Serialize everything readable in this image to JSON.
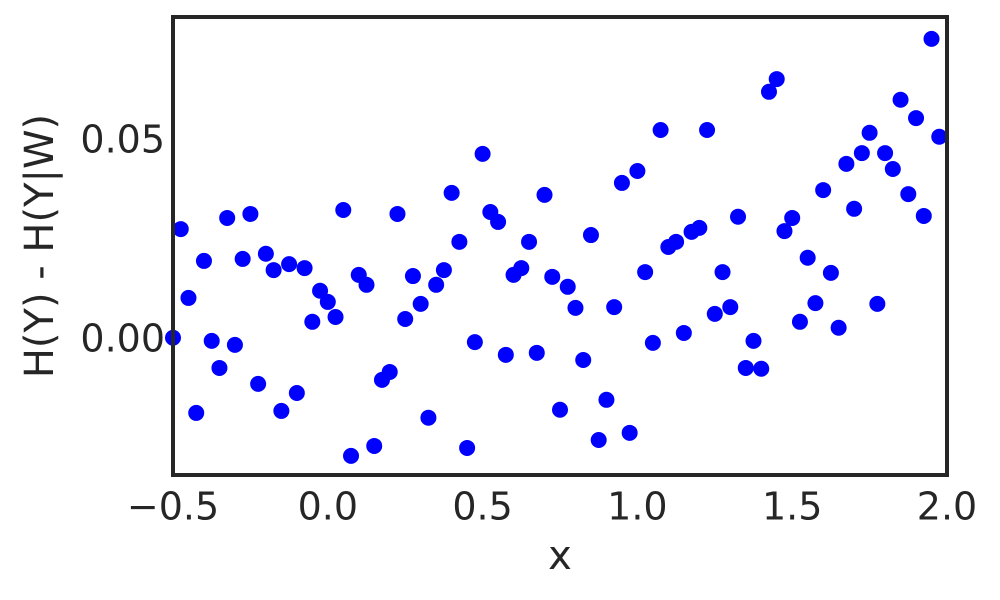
{
  "chart_data": {
    "type": "scatter",
    "xlabel": "x",
    "ylabel": "H(Y) - H(Y|W)",
    "color": "#0000ff",
    "grid": false,
    "xlim": [
      -0.5,
      2.0
    ],
    "ylim": [
      -0.0337,
      0.0814
    ],
    "xticks": [
      {
        "value": -0.5,
        "label": "−0.5"
      },
      {
        "value": 0,
        "label": "0.0"
      },
      0.5,
      {
        "value": 1,
        "label": "1.0"
      },
      1.5,
      {
        "value": 2,
        "label": "2.0"
      }
    ],
    "yticks": [
      {
        "value": 0,
        "label": "0.00"
      },
      0.05
    ],
    "x": [
      -0.5,
      -0.475,
      -0.45,
      -0.425,
      -0.4,
      -0.375,
      -0.35,
      -0.325,
      -0.3,
      -0.275,
      -0.25,
      -0.225,
      -0.2,
      -0.175,
      -0.15,
      -0.125,
      -0.1,
      -0.075,
      -0.05,
      -0.025,
      0,
      0.025,
      0.05,
      0.075,
      0.1,
      0.125,
      0.15,
      0.175,
      0.2,
      0.225,
      0.25,
      0.275,
      0.3,
      0.325,
      0.35,
      0.375,
      0.4,
      0.425,
      0.45,
      0.475,
      0.5,
      0.525,
      0.55,
      0.575,
      0.6,
      0.625,
      0.65,
      0.675,
      0.7,
      0.725,
      0.75,
      0.775,
      0.8,
      0.825,
      0.85,
      0.875,
      0.9,
      0.925,
      0.95,
      0.975,
      1,
      1.025,
      1.05,
      1.075,
      1.1,
      1.125,
      1.15,
      1.175,
      1.2,
      1.225,
      1.25,
      1.275,
      1.3,
      1.325,
      1.35,
      1.375,
      1.4,
      1.425,
      1.45,
      1.475,
      1.5,
      1.525,
      1.55,
      1.575,
      1.6,
      1.625,
      1.65,
      1.675,
      1.7,
      1.725,
      1.75,
      1.775,
      1.8,
      1.825,
      1.85,
      1.875,
      1.9,
      1.925,
      1.95,
      1.975
    ],
    "values": [
      0.0008,
      0.0281,
      0.0108,
      -0.0181,
      0.0201,
      0,
      -0.0068,
      0.0309,
      -0.001,
      0.0206,
      0.0319,
      -0.0108,
      0.0219,
      0.0178,
      -0.0176,
      0.0193,
      -0.0131,
      0.0183,
      0.0048,
      0.0126,
      0.0098,
      0.006,
      0.0329,
      -0.0289,
      0.0166,
      0.0141,
      -0.0264,
      -0.0098,
      -0.0078,
      0.0319,
      0.0055,
      0.0163,
      0.0093,
      -0.0193,
      0.0141,
      0.0178,
      0.0372,
      0.0249,
      -0.0269,
      -0.0003,
      0.047,
      0.0324,
      0.0299,
      -0.0035,
      0.0166,
      0.0183,
      0.0249,
      -0.003,
      0.0367,
      0.0161,
      -0.0173,
      0.0136,
      0.0083,
      -0.0048,
      0.0266,
      -0.0249,
      -0.0148,
      0.0085,
      0.0397,
      -0.0231,
      0.0427,
      0.0173,
      -0.0005,
      0.053,
      0.0236,
      0.0249,
      0.002,
      0.0274,
      0.0284,
      0.053,
      0.0068,
      0.0173,
      0.0085,
      0.0312,
      -0.0068,
      0,
      -0.007,
      0.0626,
      0.0658,
      0.0276,
      0.0309,
      0.0048,
      0.0209,
      0.0095,
      0.0379,
      0.0171,
      0.0033,
      0.0445,
      0.0332,
      0.0472,
      0.0523,
      0.0093,
      0.0472,
      0.0432,
      0.0606,
      0.0369,
      0.056,
      0.0314,
      0.0759,
      0.0513
    ]
  }
}
